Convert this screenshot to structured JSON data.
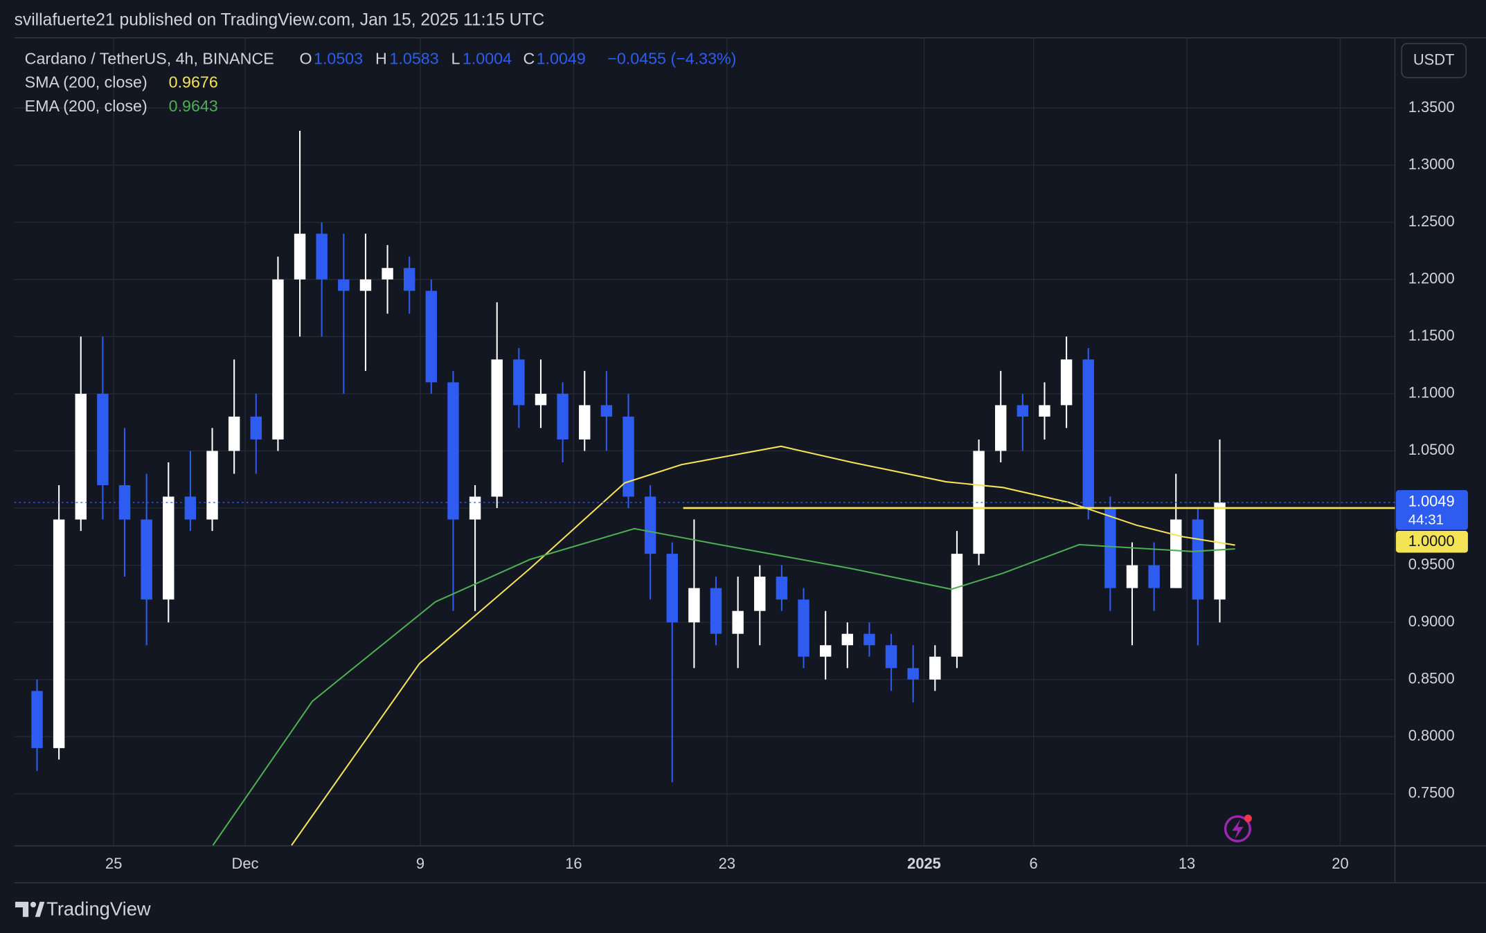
{
  "header": {
    "text": "svillafuerte21 published on TradingView.com, Jan 15, 2025 11:15 UTC"
  },
  "chart_data": {
    "type": "candlestick",
    "symbol": "Cardano / TetherUS, 4h, BINANCE",
    "ohlc_legend": {
      "labels": [
        "O",
        "H",
        "L",
        "C"
      ],
      "values": [
        1.0503,
        1.0583,
        1.0004,
        1.0049
      ],
      "change": "−0.0455 (−4.33%)"
    },
    "x": [
      21,
      22,
      23,
      24,
      25,
      26,
      27,
      28,
      29,
      30,
      31,
      32,
      33,
      34,
      35,
      36,
      37,
      38,
      39,
      40,
      41,
      42,
      43,
      44,
      45,
      46,
      47,
      48,
      49,
      50,
      51,
      52,
      53,
      54,
      55,
      56,
      57,
      58,
      59,
      60,
      61,
      62,
      63,
      64,
      65,
      66,
      67,
      68,
      69,
      70,
      71,
      72,
      73,
      74,
      75
    ],
    "open": [
      0.84,
      0.79,
      0.99,
      1.1,
      1.02,
      0.99,
      0.92,
      1.01,
      0.99,
      1.05,
      1.08,
      1.06,
      1.2,
      1.24,
      1.2,
      1.19,
      1.2,
      1.21,
      1.19,
      1.11,
      0.99,
      1.01,
      1.13,
      1.09,
      1.1,
      1.06,
      1.09,
      1.08,
      1.01,
      0.96,
      0.9,
      0.93,
      0.89,
      0.91,
      0.94,
      0.92,
      0.87,
      0.88,
      0.89,
      0.88,
      0.86,
      0.85,
      0.87,
      0.96,
      1.05,
      1.09,
      1.08,
      1.09,
      1.13,
      1.0,
      0.93,
      0.95,
      0.93,
      0.99,
      0.92
    ],
    "high": [
      0.85,
      1.02,
      1.15,
      1.15,
      1.07,
      1.03,
      1.04,
      1.05,
      1.07,
      1.13,
      1.1,
      1.22,
      1.33,
      1.25,
      1.24,
      1.24,
      1.23,
      1.22,
      1.2,
      1.12,
      1.02,
      1.18,
      1.14,
      1.13,
      1.11,
      1.12,
      1.12,
      1.1,
      1.02,
      0.97,
      0.99,
      0.94,
      0.94,
      0.95,
      0.95,
      0.93,
      0.91,
      0.9,
      0.9,
      0.89,
      0.88,
      0.88,
      0.98,
      1.06,
      1.12,
      1.1,
      1.11,
      1.15,
      1.14,
      1.01,
      0.97,
      0.97,
      1.03,
      1.0,
      1.06
    ],
    "low": [
      0.77,
      0.78,
      0.98,
      0.99,
      0.94,
      0.88,
      0.9,
      0.98,
      0.98,
      1.03,
      1.03,
      1.05,
      1.15,
      1.15,
      1.1,
      1.12,
      1.17,
      1.17,
      1.1,
      0.91,
      0.91,
      1.0,
      1.07,
      1.07,
      1.04,
      1.05,
      1.05,
      1.0,
      0.92,
      0.76,
      0.86,
      0.88,
      0.86,
      0.88,
      0.91,
      0.86,
      0.85,
      0.86,
      0.87,
      0.84,
      0.83,
      0.84,
      0.86,
      0.95,
      1.04,
      1.05,
      1.06,
      1.07,
      0.99,
      0.91,
      0.88,
      0.91,
      0.93,
      0.88,
      0.9
    ],
    "close": [
      0.79,
      0.99,
      1.1,
      1.02,
      0.99,
      0.92,
      1.01,
      0.99,
      1.05,
      1.08,
      1.06,
      1.2,
      1.24,
      1.2,
      1.19,
      1.2,
      1.21,
      1.19,
      1.11,
      0.99,
      1.01,
      1.13,
      1.09,
      1.1,
      1.06,
      1.09,
      1.08,
      1.01,
      0.96,
      0.9,
      0.93,
      0.89,
      0.91,
      0.94,
      0.92,
      0.87,
      0.88,
      0.89,
      0.88,
      0.86,
      0.85,
      0.87,
      0.96,
      1.05,
      1.09,
      1.08,
      1.09,
      1.13,
      1.0,
      0.93,
      0.95,
      0.93,
      0.99,
      0.92,
      1.0049
    ],
    "up_color": "#ffffff",
    "down_color": "#2e5cf0",
    "series": [
      {
        "name": "SMA (200, close)",
        "color": "#f5e356",
        "last_value": 0.9676,
        "x": [
          33.12,
          38.96,
          44.0,
          48.33,
          50.93,
          55.47,
          58.7,
          63.0,
          65.6,
          68.6,
          71.7,
          73.8,
          76.2
        ],
        "values": [
          0.705,
          0.864,
          0.947,
          1.022,
          1.038,
          1.054,
          1.04,
          1.023,
          1.018,
          1.005,
          0.985,
          0.975,
          0.9676
        ]
      },
      {
        "name": "EMA (200, close)",
        "color": "#4caf50",
        "last_value": 0.9643,
        "x": [
          29.53,
          34.07,
          39.69,
          44.0,
          48.77,
          52.66,
          58.7,
          63.24,
          65.6,
          69.08,
          71.67,
          74.26,
          76.2
        ],
        "values": [
          0.705,
          0.831,
          0.918,
          0.955,
          0.982,
          0.968,
          0.947,
          0.929,
          0.943,
          0.968,
          0.965,
          0.962,
          0.9643
        ]
      }
    ],
    "hline": {
      "value": 1,
      "label": "1.0000",
      "color": "#f5e356",
      "x_start": 51.0
    },
    "last_price": {
      "value": 1.0049,
      "countdown": "44:31",
      "color": "#2e5cf0"
    },
    "unit": "USDT",
    "xlim": [
      20.46,
      83.5
    ],
    "ylim": [
      0.7045,
      1.4113
    ],
    "xticks": [
      25,
      {
        "value": 31,
        "label": "Dec"
      },
      {
        "value": 39,
        "label": "9"
      },
      {
        "value": 46,
        "label": "16"
      },
      {
        "value": 53,
        "label": "23"
      },
      {
        "value": 62,
        "label": "2025"
      },
      {
        "value": 67,
        "label": "6"
      },
      {
        "value": 74,
        "label": "13"
      },
      {
        "value": 81,
        "label": "20"
      }
    ],
    "yticks": [
      {
        "value": 0.75,
        "label": "0.7500"
      },
      {
        "value": 0.8,
        "label": "0.8000"
      },
      {
        "value": 0.85,
        "label": "0.8500"
      },
      {
        "value": 0.9,
        "label": "0.9000"
      },
      {
        "value": 0.95,
        "label": "0.9500"
      },
      {
        "value": 1,
        "label": "1.0000"
      },
      {
        "value": 1.05,
        "label": "1.0500"
      },
      {
        "value": 1.1,
        "label": "1.1000"
      },
      {
        "value": 1.15,
        "label": "1.1500"
      },
      {
        "value": 1.2,
        "label": "1.2000"
      },
      {
        "value": 1.25,
        "label": "1.2500"
      },
      {
        "value": 1.3,
        "label": "1.3000"
      },
      {
        "value": 1.35,
        "label": "1.3500"
      }
    ],
    "grid": true
  },
  "footer": {
    "brand": "TradingView"
  }
}
